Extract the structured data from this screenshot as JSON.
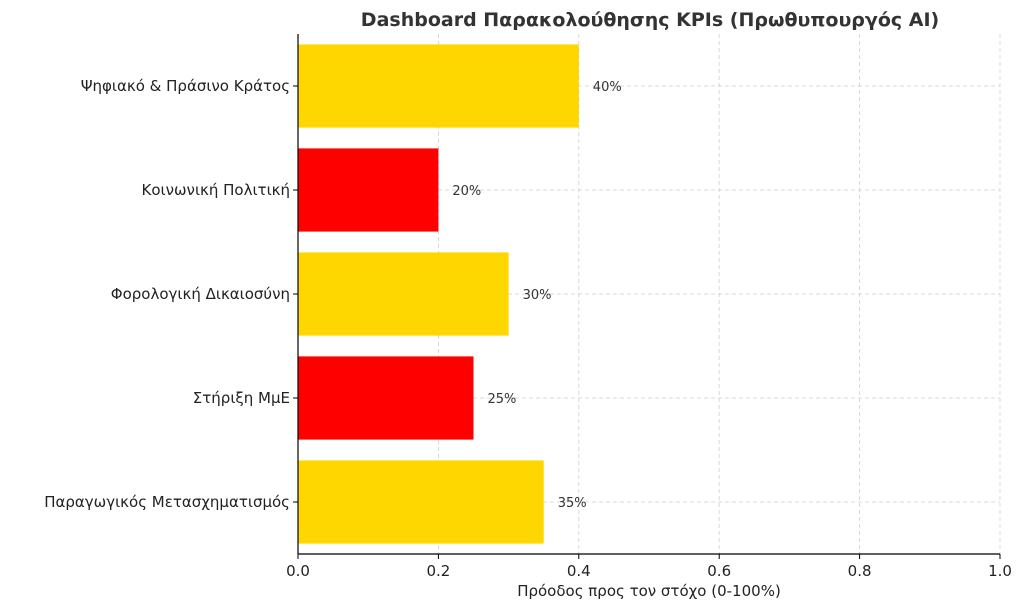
{
  "chart_data": {
    "type": "bar",
    "orientation": "horizontal",
    "title": "Dashboard Παρακολούθησης KPIs (Πρωθυπουργός AI)",
    "xlabel": "Πρόοδος προς τον στόχο (0-100%)",
    "ylabel": "",
    "xlim": [
      0,
      1
    ],
    "xticks": [
      0.0,
      0.2,
      0.4,
      0.6,
      0.8,
      1.0
    ],
    "xtick_labels": [
      "0.0",
      "0.2",
      "0.4",
      "0.6",
      "0.8",
      "1.0"
    ],
    "grid": true,
    "categories": [
      "Ψηφιακό & Πράσινο Κράτος",
      "Κοινωνική Πολιτική",
      "Φορολογική Δικαιοσύνη",
      "Στήριξη ΜμΕ",
      "Παραγωγικός Μετασχηματισμός"
    ],
    "values": [
      0.4,
      0.2,
      0.3,
      0.25,
      0.35
    ],
    "value_labels": [
      "40%",
      "20%",
      "30%",
      "25%",
      "35%"
    ],
    "colors": [
      "#FFD700",
      "#FF0000",
      "#FFD700",
      "#FF0000",
      "#FFD700"
    ]
  }
}
